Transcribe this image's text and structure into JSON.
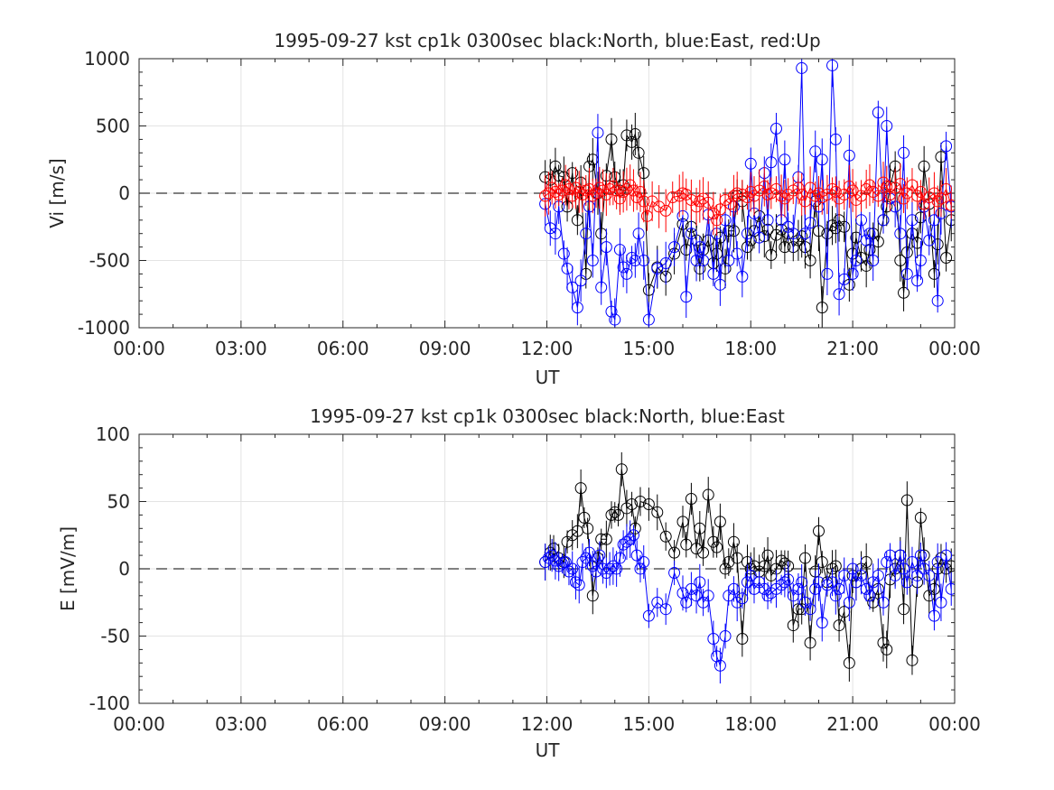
{
  "chart_data": [
    {
      "type": "scatter",
      "title": "1995-09-27 kst cp1k 0300sec black:North, blue:East, red:Up",
      "xlabel": "UT",
      "ylabel": "Vi [m/s]",
      "xlim": [
        "00:00",
        "24:00"
      ],
      "ylim": [
        -1000,
        1000
      ],
      "x_ticks": [
        "00:00",
        "03:00",
        "06:00",
        "09:00",
        "12:00",
        "15:00",
        "18:00",
        "21:00",
        "00:00"
      ],
      "y_ticks": [
        "1000",
        "500",
        "0",
        "-500",
        "-1000"
      ],
      "y_tick_values": [
        1000,
        500,
        0,
        -500,
        -1000
      ],
      "grid": true,
      "reference_line": {
        "y": 0,
        "style": "dashed"
      },
      "x_units": "hours UT",
      "series": [
        {
          "name": "North",
          "color": "#000000",
          "x": [
            11.95,
            12.1,
            12.25,
            12.35,
            12.5,
            12.6,
            12.75,
            12.9,
            13.0,
            13.15,
            13.25,
            13.35,
            13.5,
            13.6,
            13.75,
            13.9,
            14.0,
            14.15,
            14.25,
            14.35,
            14.5,
            14.6,
            14.7,
            14.85,
            15.0,
            15.25,
            15.5,
            15.75,
            16.0,
            16.1,
            16.25,
            16.4,
            16.5,
            16.6,
            16.75,
            16.9,
            17.0,
            17.1,
            17.25,
            17.35,
            17.5,
            17.6,
            17.75,
            17.9,
            18.0,
            18.1,
            18.25,
            18.4,
            18.5,
            18.6,
            18.75,
            18.9,
            19.0,
            19.1,
            19.25,
            19.4,
            19.5,
            19.6,
            19.75,
            19.9,
            20.0,
            20.1,
            20.25,
            20.4,
            20.5,
            20.6,
            20.75,
            20.9,
            21.0,
            21.1,
            21.25,
            21.4,
            21.5,
            21.6,
            21.75,
            21.9,
            22.0,
            22.1,
            22.25,
            22.4,
            22.5,
            22.6,
            22.75,
            22.9,
            23.0,
            23.1,
            23.25,
            23.4,
            23.5,
            23.6,
            23.75,
            23.9
          ],
          "values": [
            120,
            100,
            200,
            130,
            120,
            -100,
            150,
            -200,
            80,
            -600,
            200,
            250,
            0,
            -300,
            130,
            400,
            120,
            20,
            60,
            430,
            380,
            440,
            300,
            150,
            -720,
            -550,
            -620,
            -450,
            -230,
            -420,
            -250,
            -350,
            -560,
            -420,
            -350,
            -520,
            -450,
            -330,
            -560,
            -280,
            -280,
            -20,
            -60,
            -400,
            -350,
            -280,
            -170,
            -320,
            -270,
            -460,
            -310,
            -270,
            -400,
            -300,
            -400,
            -350,
            -320,
            -400,
            -500,
            -60,
            -280,
            -850,
            -300,
            -240,
            -260,
            -200,
            -250,
            -680,
            -450,
            -330,
            -480,
            -540,
            -420,
            -300,
            -360,
            -200,
            -100,
            50,
            200,
            -500,
            -740,
            -440,
            -300,
            -370,
            -180,
            200,
            -80,
            -600,
            -380,
            270,
            -480,
            -200
          ]
        },
        {
          "name": "East",
          "color": "#0000ff",
          "x": [
            11.95,
            12.1,
            12.25,
            12.35,
            12.5,
            12.6,
            12.75,
            12.9,
            13.0,
            13.15,
            13.25,
            13.35,
            13.5,
            13.6,
            13.75,
            13.9,
            14.0,
            14.15,
            14.25,
            14.35,
            14.5,
            14.6,
            14.7,
            14.85,
            15.0,
            15.25,
            15.5,
            15.75,
            16.0,
            16.1,
            16.25,
            16.4,
            16.5,
            16.6,
            16.75,
            16.9,
            17.0,
            17.1,
            17.25,
            17.35,
            17.5,
            17.6,
            17.75,
            17.9,
            18.0,
            18.1,
            18.25,
            18.4,
            18.5,
            18.6,
            18.75,
            18.9,
            19.0,
            19.1,
            19.25,
            19.4,
            19.5,
            19.6,
            19.75,
            19.9,
            20.0,
            20.1,
            20.25,
            20.4,
            20.5,
            20.6,
            20.75,
            20.9,
            21.0,
            21.1,
            21.25,
            21.4,
            21.5,
            21.6,
            21.75,
            21.9,
            22.0,
            22.1,
            22.25,
            22.4,
            22.5,
            22.6,
            22.75,
            22.9,
            23.0,
            23.1,
            23.25,
            23.4,
            23.5,
            23.6,
            23.75,
            23.9
          ],
          "values": [
            -80,
            -260,
            -300,
            -100,
            -450,
            -560,
            -700,
            -850,
            -650,
            -300,
            -100,
            -500,
            450,
            -700,
            -400,
            -880,
            -940,
            -420,
            -550,
            -600,
            -480,
            -500,
            -300,
            -500,
            -940,
            -560,
            -520,
            -400,
            -170,
            -770,
            -300,
            -500,
            -400,
            -500,
            -160,
            -600,
            -300,
            -680,
            -200,
            -500,
            -100,
            -450,
            -620,
            -300,
            220,
            -150,
            -330,
            150,
            -200,
            230,
            480,
            -200,
            250,
            -250,
            -300,
            120,
            930,
            -300,
            -220,
            310,
            -100,
            250,
            -600,
            950,
            400,
            -750,
            -640,
            280,
            -600,
            -500,
            -200,
            -350,
            -300,
            -500,
            600,
            -200,
            500,
            -40,
            -100,
            -300,
            300,
            -600,
            -200,
            -650,
            -500,
            -100,
            -350,
            -200,
            -800,
            -150,
            350,
            -100
          ]
        },
        {
          "name": "Up",
          "color": "#ff0000",
          "x": [
            11.95,
            12.05,
            12.15,
            12.25,
            12.35,
            12.45,
            12.55,
            12.65,
            12.75,
            12.85,
            12.95,
            13.05,
            13.15,
            13.25,
            13.35,
            13.45,
            13.55,
            13.65,
            13.75,
            13.85,
            13.95,
            14.05,
            14.15,
            14.25,
            14.35,
            14.45,
            14.55,
            14.65,
            14.75,
            14.85,
            14.95,
            15.1,
            15.3,
            15.5,
            15.7,
            15.9,
            16.0,
            16.1,
            16.25,
            16.4,
            16.5,
            16.6,
            16.75,
            16.9,
            17.0,
            17.1,
            17.25,
            17.4,
            17.5,
            17.6,
            17.75,
            17.9,
            18.0,
            18.1,
            18.25,
            18.4,
            18.5,
            18.6,
            18.75,
            18.9,
            19.0,
            19.1,
            19.25,
            19.4,
            19.5,
            19.6,
            19.75,
            19.9,
            20.0,
            20.1,
            20.25,
            20.4,
            20.5,
            20.6,
            20.75,
            20.9,
            21.0,
            21.1,
            21.25,
            21.4,
            21.5,
            21.6,
            21.75,
            21.9,
            22.0,
            22.1,
            22.25,
            22.4,
            22.5,
            22.6,
            22.75,
            22.9,
            23.0,
            23.1,
            23.25,
            23.4,
            23.5,
            23.6,
            23.75,
            23.9
          ],
          "values": [
            -20,
            0,
            40,
            10,
            -10,
            20,
            60,
            30,
            -20,
            40,
            10,
            -10,
            20,
            30,
            -20,
            0,
            40,
            20,
            -10,
            30,
            50,
            20,
            -40,
            10,
            30,
            60,
            20,
            -30,
            10,
            -60,
            -170,
            -60,
            -100,
            -130,
            -30,
            -20,
            0,
            -10,
            -50,
            -100,
            -60,
            -40,
            -70,
            -150,
            -200,
            -120,
            -50,
            -80,
            -20,
            0,
            -10,
            -30,
            10,
            -20,
            20,
            50,
            -10,
            0,
            30,
            -20,
            -40,
            -10,
            20,
            40,
            -10,
            -60,
            40,
            -20,
            0,
            -30,
            -10,
            30,
            10,
            -40,
            -10,
            50,
            20,
            -50,
            -20,
            30,
            60,
            10,
            -20,
            80,
            50,
            -10,
            40,
            70,
            -40,
            0,
            60,
            -20,
            10,
            -80,
            -30,
            0,
            -60,
            -40,
            30,
            -90
          ]
        }
      ]
    },
    {
      "type": "scatter",
      "title": "1995-09-27 kst cp1k 0300sec black:North, blue:East",
      "xlabel": "UT",
      "ylabel": "E [mV/m]",
      "xlim": [
        "00:00",
        "24:00"
      ],
      "ylim": [
        -100,
        100
      ],
      "x_ticks": [
        "00:00",
        "03:00",
        "06:00",
        "09:00",
        "12:00",
        "15:00",
        "18:00",
        "21:00",
        "00:00"
      ],
      "y_ticks": [
        "100",
        "50",
        "0",
        "-50",
        "-100"
      ],
      "y_tick_values": [
        100,
        50,
        0,
        -50,
        -100
      ],
      "grid": true,
      "reference_line": {
        "y": 0,
        "style": "dashed"
      },
      "x_units": "hours UT",
      "series": [
        {
          "name": "North",
          "color": "#000000",
          "x": [
            11.95,
            12.1,
            12.2,
            12.35,
            12.5,
            12.6,
            12.75,
            12.9,
            13.0,
            13.1,
            13.2,
            13.35,
            13.5,
            13.6,
            13.75,
            13.9,
            14.0,
            14.1,
            14.2,
            14.35,
            14.5,
            14.6,
            14.75,
            15.0,
            15.25,
            15.5,
            15.75,
            16.0,
            16.1,
            16.25,
            16.4,
            16.5,
            16.6,
            16.75,
            16.9,
            17.0,
            17.1,
            17.25,
            17.35,
            17.5,
            17.6,
            17.75,
            17.9,
            18.0,
            18.1,
            18.25,
            18.4,
            18.5,
            18.6,
            18.75,
            18.9,
            19.0,
            19.1,
            19.25,
            19.4,
            19.5,
            19.6,
            19.75,
            19.9,
            20.0,
            20.1,
            20.25,
            20.4,
            20.5,
            20.6,
            20.75,
            20.9,
            21.0,
            21.1,
            21.25,
            21.4,
            21.5,
            21.6,
            21.75,
            21.9,
            22.0,
            22.1,
            22.25,
            22.4,
            22.5,
            22.6,
            22.75,
            22.9,
            23.0,
            23.1,
            23.25,
            23.4,
            23.5,
            23.6,
            23.75,
            23.9
          ],
          "values": [
            5,
            12,
            15,
            8,
            5,
            20,
            25,
            28,
            60,
            38,
            30,
            -20,
            8,
            22,
            22,
            40,
            42,
            40,
            74,
            45,
            48,
            30,
            50,
            48,
            42,
            24,
            12,
            35,
            18,
            52,
            15,
            30,
            12,
            55,
            20,
            16,
            35,
            0,
            5,
            20,
            8,
            -52,
            5,
            0,
            2,
            -2,
            2,
            10,
            -5,
            0,
            6,
            4,
            2,
            -42,
            -30,
            -30,
            8,
            -55,
            -2,
            28,
            5,
            -10,
            0,
            2,
            -42,
            -32,
            -70,
            -5,
            -10,
            0,
            5,
            -20,
            -25,
            -15,
            -55,
            -60,
            -8,
            0,
            10,
            -30,
            51,
            -68,
            -10,
            38,
            10,
            -20,
            -15,
            0,
            8,
            0,
            2
          ]
        },
        {
          "name": "East",
          "color": "#0000ff",
          "x": [
            11.95,
            12.05,
            12.15,
            12.25,
            12.35,
            12.45,
            12.55,
            12.65,
            12.75,
            12.85,
            12.95,
            13.05,
            13.15,
            13.25,
            13.35,
            13.45,
            13.55,
            13.65,
            13.75,
            13.85,
            13.95,
            14.05,
            14.15,
            14.25,
            14.35,
            14.45,
            14.55,
            14.65,
            14.75,
            14.85,
            15.0,
            15.25,
            15.5,
            15.75,
            16.0,
            16.1,
            16.25,
            16.4,
            16.5,
            16.6,
            16.75,
            16.9,
            17.0,
            17.1,
            17.25,
            17.35,
            17.5,
            17.6,
            17.75,
            17.9,
            18.0,
            18.1,
            18.25,
            18.4,
            18.5,
            18.6,
            18.75,
            18.9,
            19.0,
            19.1,
            19.25,
            19.4,
            19.5,
            19.6,
            19.75,
            19.9,
            20.0,
            20.1,
            20.25,
            20.4,
            20.5,
            20.6,
            20.75,
            20.9,
            21.0,
            21.1,
            21.25,
            21.4,
            21.5,
            21.6,
            21.75,
            21.9,
            22.0,
            22.1,
            22.25,
            22.4,
            22.5,
            22.6,
            22.75,
            22.9,
            23.0,
            23.1,
            23.25,
            23.4,
            23.5,
            23.6,
            23.75,
            23.9
          ],
          "values": [
            5,
            8,
            10,
            6,
            2,
            4,
            5,
            -2,
            0,
            -10,
            -12,
            5,
            8,
            12,
            2,
            -2,
            10,
            0,
            -3,
            0,
            2,
            0,
            8,
            18,
            20,
            22,
            25,
            10,
            0,
            5,
            -35,
            -25,
            -30,
            -3,
            -18,
            -25,
            -15,
            -20,
            -10,
            -25,
            -20,
            -52,
            -65,
            -72,
            -50,
            -20,
            -15,
            -25,
            -22,
            -10,
            -5,
            -15,
            -10,
            -15,
            -20,
            -18,
            -15,
            -12,
            -10,
            -8,
            -20,
            -15,
            -10,
            -25,
            -30,
            -15,
            -10,
            -40,
            -12,
            -10,
            -20,
            -15,
            -5,
            -25,
            0,
            -10,
            -5,
            -15,
            -20,
            -10,
            -5,
            -25,
            5,
            10,
            -5,
            10,
            0,
            -10,
            5,
            -5,
            10,
            0,
            -5,
            -35,
            5,
            -25,
            10,
            -15
          ]
        }
      ]
    }
  ]
}
